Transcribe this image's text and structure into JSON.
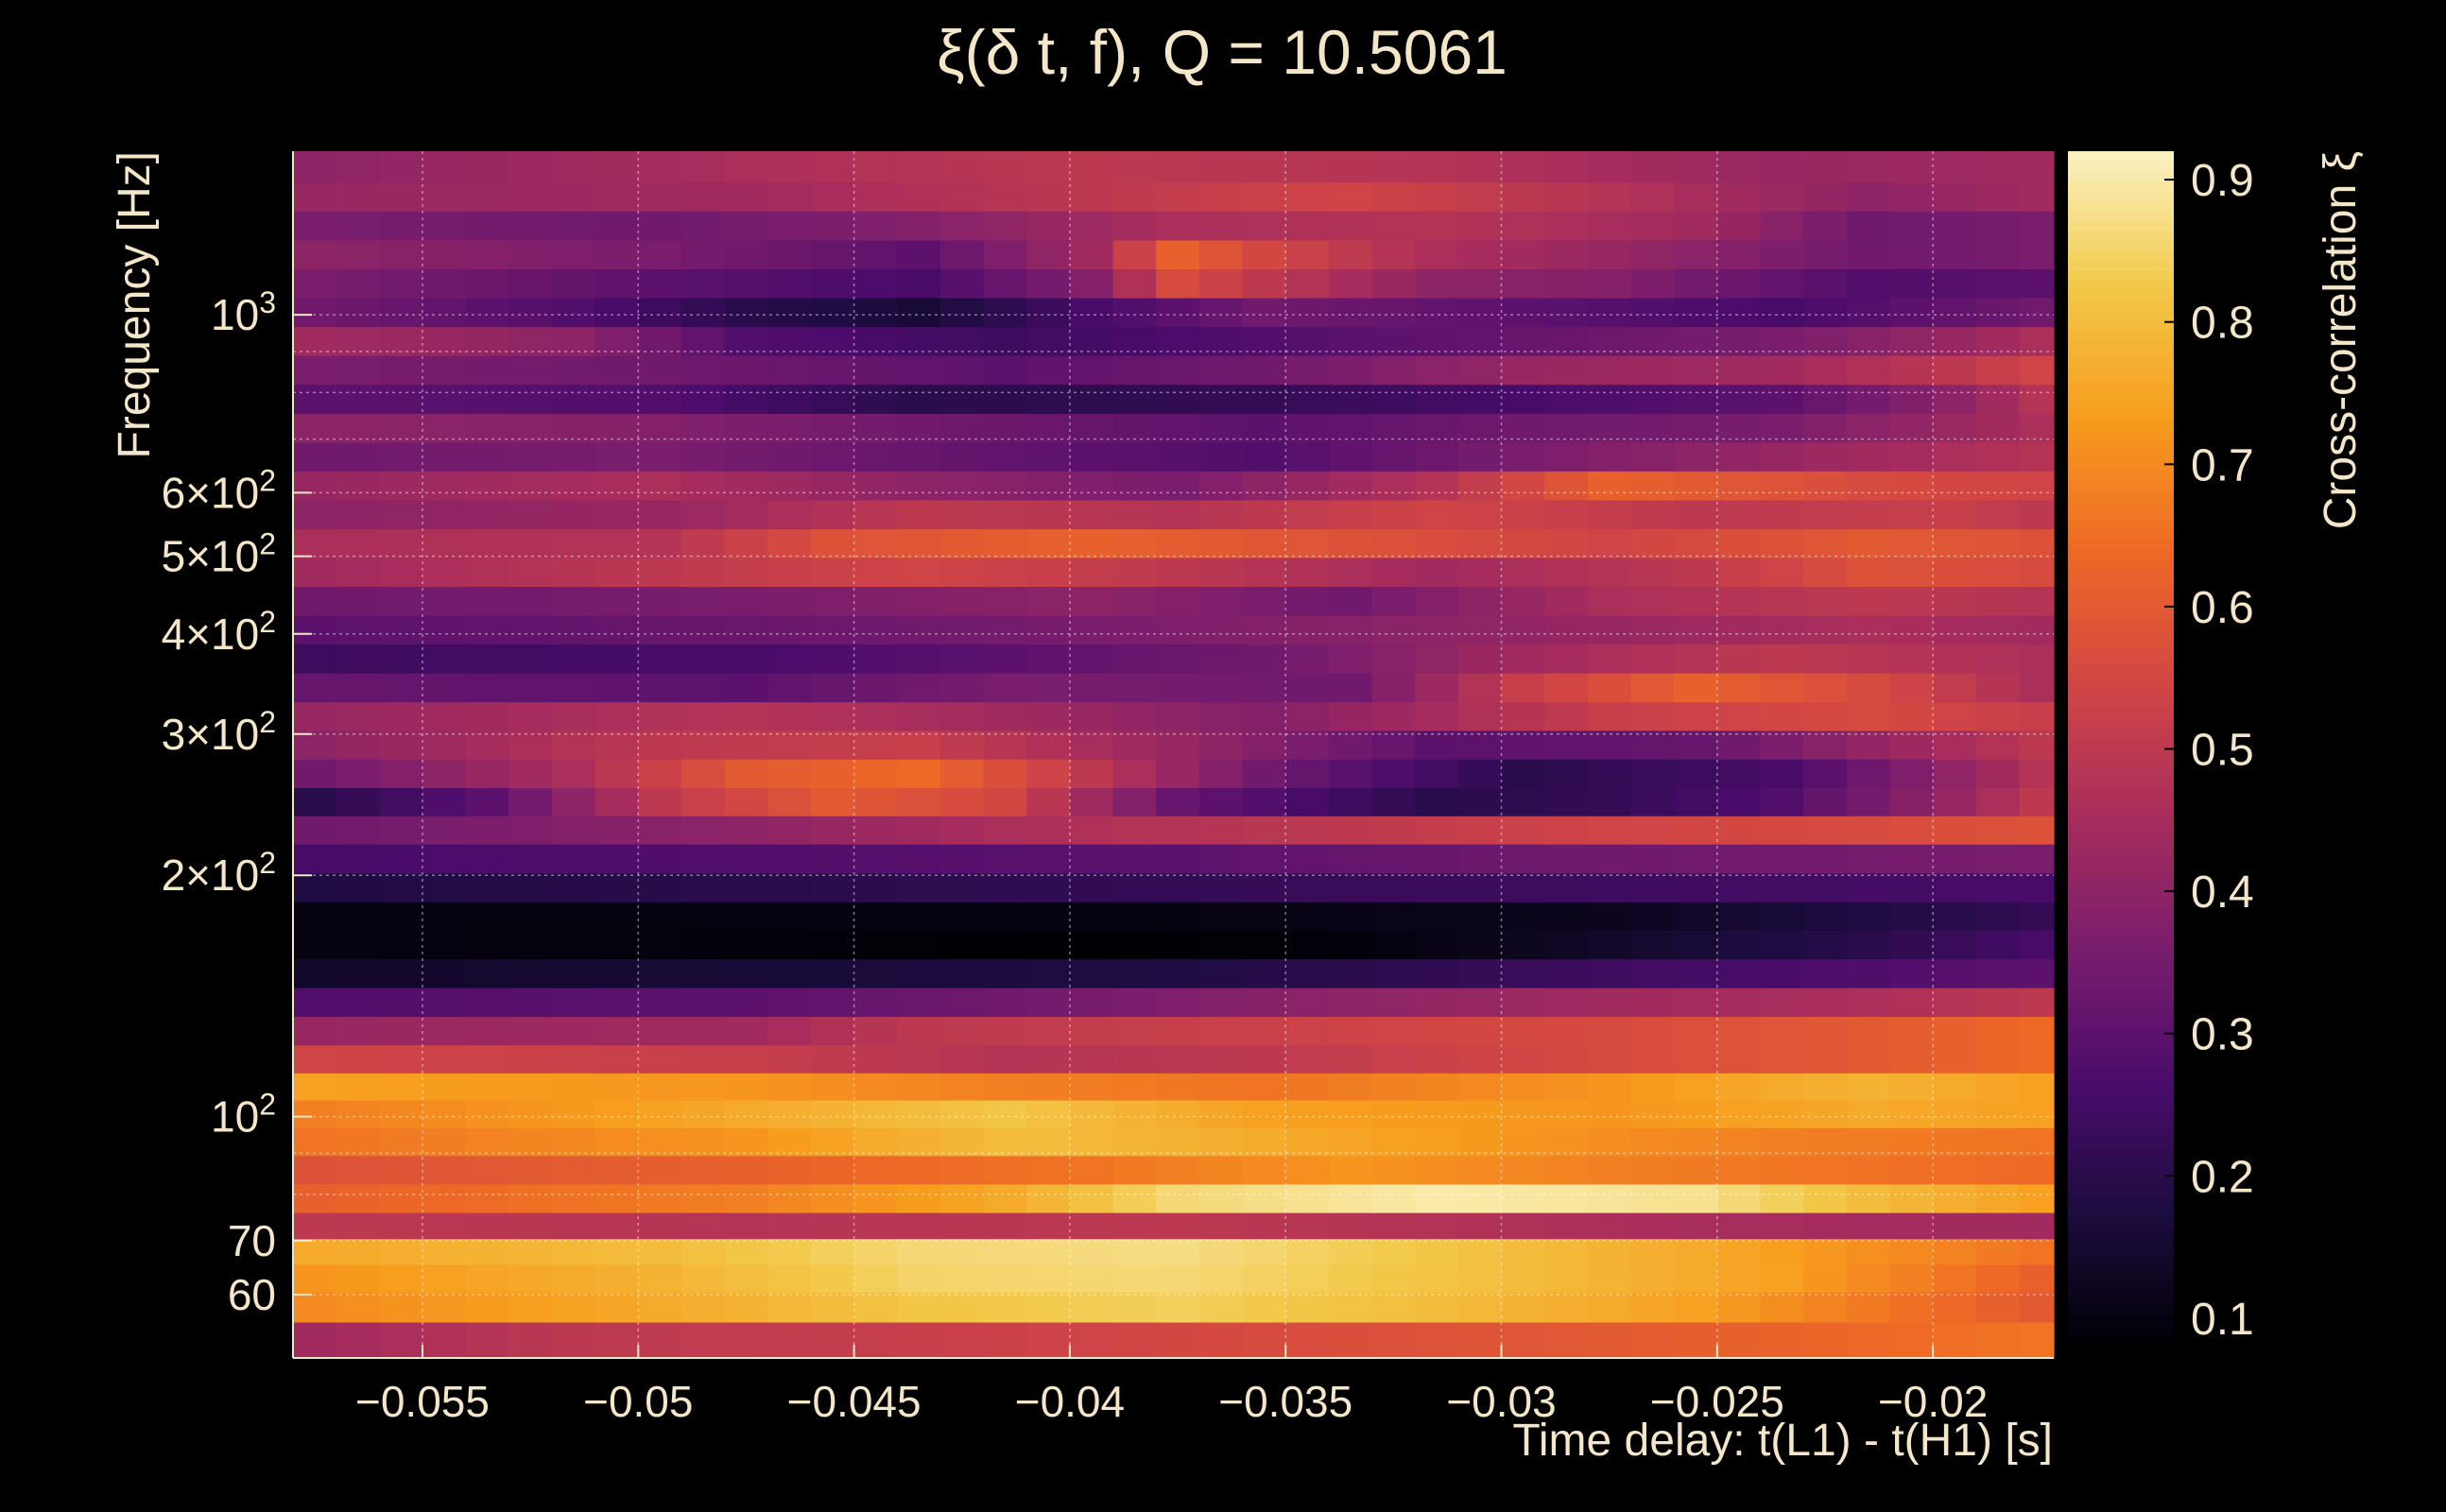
{
  "chart_data": {
    "type": "heatmap",
    "title": "ξ(δ t, f), Q = 10.5061",
    "xlabel": "Time delay: t(L1) - t(H1) [s]",
    "ylabel": "Frequency [Hz]",
    "colorbar_label": "Cross-correlation ξ",
    "xlim": [
      -0.058,
      -0.0172
    ],
    "ylim": [
      50,
      1600
    ],
    "yscale": "log",
    "grid": true,
    "colormap": [
      "#000004",
      "#1c0c3f",
      "#4b0c6b",
      "#7a1d6d",
      "#a72d5c",
      "#d24644",
      "#ee6925",
      "#f79d1e",
      "#f2c94a",
      "#fbf3c4"
    ],
    "clim": [
      0.08,
      0.92
    ],
    "x_ticks": [
      {
        "value": -0.055,
        "label": "−0.055"
      },
      {
        "value": -0.05,
        "label": "−0.05"
      },
      {
        "value": -0.045,
        "label": "−0.045"
      },
      {
        "value": -0.04,
        "label": "−0.04"
      },
      {
        "value": -0.035,
        "label": "−0.035"
      },
      {
        "value": -0.03,
        "label": "−0.03"
      },
      {
        "value": -0.025,
        "label": "−0.025"
      },
      {
        "value": -0.02,
        "label": "−0.02"
      }
    ],
    "y_ticks": [
      {
        "value": 60,
        "mant": "60",
        "exp": ""
      },
      {
        "value": 70,
        "mant": "70",
        "exp": ""
      },
      {
        "value": 100,
        "mant": "10",
        "exp": "2"
      },
      {
        "value": 200,
        "mant": "2×10",
        "exp": "2"
      },
      {
        "value": 300,
        "mant": "3×10",
        "exp": "2"
      },
      {
        "value": 400,
        "mant": "4×10",
        "exp": "2"
      },
      {
        "value": 500,
        "mant": "5×10",
        "exp": "2"
      },
      {
        "value": 600,
        "mant": "6×10",
        "exp": "2"
      },
      {
        "value": 1000,
        "mant": "10",
        "exp": "3"
      }
    ],
    "colorbar_ticks": [
      {
        "value": 0.1,
        "label": "0.1"
      },
      {
        "value": 0.2,
        "label": "0.2"
      },
      {
        "value": 0.3,
        "label": "0.3"
      },
      {
        "value": 0.4,
        "label": "0.4"
      },
      {
        "value": 0.5,
        "label": "0.5"
      },
      {
        "value": 0.6,
        "label": "0.6"
      },
      {
        "value": 0.7,
        "label": "0.7"
      },
      {
        "value": 0.8,
        "label": "0.8"
      },
      {
        "value": 0.9,
        "label": "0.9"
      }
    ],
    "grid_x_values": [
      -0.055,
      -0.05,
      -0.045,
      -0.04,
      -0.035,
      -0.03,
      -0.025,
      -0.02
    ],
    "grid_y_values": [
      60,
      70,
      80,
      90,
      100,
      200,
      300,
      400,
      500,
      600,
      700,
      800,
      900,
      1000
    ],
    "freq_bins": [
      53,
      58,
      63,
      68,
      73,
      79,
      86,
      93,
      101,
      109,
      118,
      128,
      139,
      151,
      164,
      178,
      193,
      210,
      228,
      247,
      268,
      291,
      316,
      343,
      373,
      405,
      440,
      478,
      519,
      564,
      613,
      666,
      723,
      786,
      854,
      928,
      1008,
      1095,
      1190,
      1293,
      1405,
      1527
    ],
    "time_bins": [
      -0.0575,
      -0.0565,
      -0.0555,
      -0.0545,
      -0.0535,
      -0.0525,
      -0.0515,
      -0.0505,
      -0.0495,
      -0.0485,
      -0.0475,
      -0.0465,
      -0.0455,
      -0.0445,
      -0.0435,
      -0.0425,
      -0.0415,
      -0.0405,
      -0.0395,
      -0.0385,
      -0.0375,
      -0.0365,
      -0.0355,
      -0.0345,
      -0.0335,
      -0.0325,
      -0.0315,
      -0.0305,
      -0.0295,
      -0.0285,
      -0.0275,
      -0.0265,
      -0.0255,
      -0.0245,
      -0.0235,
      -0.0225,
      -0.0215,
      -0.0205,
      -0.0195,
      -0.0185,
      -0.0175
    ],
    "row_keyframes": [
      [
        [
          0,
          0.44
        ],
        [
          6,
          0.5
        ],
        [
          14,
          0.52
        ],
        [
          22,
          0.56
        ],
        [
          30,
          0.6
        ],
        [
          40,
          0.66
        ]
      ],
      [
        [
          0,
          0.7
        ],
        [
          8,
          0.76
        ],
        [
          14,
          0.82
        ],
        [
          20,
          0.84
        ],
        [
          26,
          0.8
        ],
        [
          32,
          0.74
        ],
        [
          40,
          0.6
        ]
      ],
      [
        [
          0,
          0.72
        ],
        [
          8,
          0.78
        ],
        [
          14,
          0.85
        ],
        [
          20,
          0.86
        ],
        [
          28,
          0.8
        ],
        [
          34,
          0.74
        ],
        [
          40,
          0.62
        ]
      ],
      [
        [
          0,
          0.76
        ],
        [
          8,
          0.8
        ],
        [
          14,
          0.86
        ],
        [
          20,
          0.87
        ],
        [
          26,
          0.82
        ],
        [
          32,
          0.76
        ],
        [
          40,
          0.66
        ]
      ],
      [
        [
          0,
          0.5
        ],
        [
          10,
          0.48
        ],
        [
          20,
          0.5
        ],
        [
          30,
          0.46
        ],
        [
          40,
          0.44
        ]
      ],
      [
        [
          0,
          0.62
        ],
        [
          10,
          0.68
        ],
        [
          16,
          0.76
        ],
        [
          20,
          0.86
        ],
        [
          26,
          0.9
        ],
        [
          32,
          0.88
        ],
        [
          36,
          0.8
        ],
        [
          40,
          0.74
        ]
      ],
      [
        [
          0,
          0.58
        ],
        [
          10,
          0.62
        ],
        [
          18,
          0.66
        ],
        [
          24,
          0.72
        ],
        [
          30,
          0.68
        ],
        [
          40,
          0.64
        ]
      ],
      [
        [
          0,
          0.66
        ],
        [
          10,
          0.72
        ],
        [
          16,
          0.8
        ],
        [
          20,
          0.78
        ],
        [
          28,
          0.72
        ],
        [
          34,
          0.68
        ],
        [
          40,
          0.66
        ]
      ],
      [
        [
          0,
          0.68
        ],
        [
          10,
          0.76
        ],
        [
          16,
          0.82
        ],
        [
          22,
          0.74
        ],
        [
          30,
          0.72
        ],
        [
          36,
          0.76
        ],
        [
          40,
          0.74
        ]
      ],
      [
        [
          0,
          0.74
        ],
        [
          10,
          0.72
        ],
        [
          16,
          0.68
        ],
        [
          22,
          0.66
        ],
        [
          30,
          0.72
        ],
        [
          36,
          0.78
        ],
        [
          40,
          0.74
        ]
      ],
      [
        [
          0,
          0.54
        ],
        [
          10,
          0.52
        ],
        [
          16,
          0.48
        ],
        [
          22,
          0.5
        ],
        [
          30,
          0.56
        ],
        [
          36,
          0.6
        ],
        [
          40,
          0.64
        ]
      ],
      [
        [
          0,
          0.42
        ],
        [
          10,
          0.44
        ],
        [
          14,
          0.5
        ],
        [
          20,
          0.52
        ],
        [
          30,
          0.56
        ],
        [
          36,
          0.6
        ],
        [
          40,
          0.64
        ]
      ],
      [
        [
          0,
          0.28
        ],
        [
          10,
          0.3
        ],
        [
          16,
          0.34
        ],
        [
          24,
          0.4
        ],
        [
          30,
          0.44
        ],
        [
          36,
          0.46
        ],
        [
          40,
          0.5
        ]
      ],
      [
        [
          0,
          0.14
        ],
        [
          10,
          0.16
        ],
        [
          20,
          0.18
        ],
        [
          30,
          0.24
        ],
        [
          40,
          0.3
        ]
      ],
      [
        [
          0,
          0.1
        ],
        [
          10,
          0.09
        ],
        [
          18,
          0.08
        ],
        [
          24,
          0.09
        ],
        [
          30,
          0.14
        ],
        [
          36,
          0.2
        ],
        [
          40,
          0.26
        ]
      ],
      [
        [
          0,
          0.1
        ],
        [
          10,
          0.1
        ],
        [
          20,
          0.1
        ],
        [
          30,
          0.12
        ],
        [
          36,
          0.18
        ],
        [
          40,
          0.22
        ]
      ],
      [
        [
          0,
          0.18
        ],
        [
          10,
          0.2
        ],
        [
          20,
          0.22
        ],
        [
          30,
          0.24
        ],
        [
          40,
          0.26
        ]
      ],
      [
        [
          0,
          0.26
        ],
        [
          10,
          0.28
        ],
        [
          20,
          0.3
        ],
        [
          30,
          0.34
        ],
        [
          40,
          0.36
        ]
      ],
      [
        [
          0,
          0.34
        ],
        [
          10,
          0.4
        ],
        [
          16,
          0.46
        ],
        [
          24,
          0.5
        ],
        [
          30,
          0.54
        ],
        [
          36,
          0.56
        ],
        [
          40,
          0.58
        ]
      ],
      [
        [
          0,
          0.2
        ],
        [
          4,
          0.3
        ],
        [
          8,
          0.5
        ],
        [
          12,
          0.6
        ],
        [
          16,
          0.55
        ],
        [
          20,
          0.32
        ],
        [
          26,
          0.2
        ],
        [
          30,
          0.22
        ],
        [
          34,
          0.28
        ],
        [
          38,
          0.42
        ],
        [
          40,
          0.5
        ]
      ],
      [
        [
          0,
          0.34
        ],
        [
          6,
          0.46
        ],
        [
          10,
          0.6
        ],
        [
          14,
          0.64
        ],
        [
          18,
          0.5
        ],
        [
          22,
          0.34
        ],
        [
          28,
          0.2
        ],
        [
          34,
          0.26
        ],
        [
          40,
          0.48
        ]
      ],
      [
        [
          0,
          0.4
        ],
        [
          8,
          0.5
        ],
        [
          14,
          0.52
        ],
        [
          20,
          0.42
        ],
        [
          26,
          0.3
        ],
        [
          32,
          0.32
        ],
        [
          40,
          0.5
        ]
      ],
      [
        [
          0,
          0.42
        ],
        [
          10,
          0.48
        ],
        [
          16,
          0.44
        ],
        [
          22,
          0.38
        ],
        [
          30,
          0.52
        ],
        [
          36,
          0.56
        ],
        [
          40,
          0.52
        ]
      ],
      [
        [
          0,
          0.32
        ],
        [
          10,
          0.3
        ],
        [
          16,
          0.36
        ],
        [
          24,
          0.34
        ],
        [
          28,
          0.52
        ],
        [
          32,
          0.62
        ],
        [
          36,
          0.56
        ],
        [
          40,
          0.46
        ]
      ],
      [
        [
          0,
          0.24
        ],
        [
          10,
          0.26
        ],
        [
          16,
          0.3
        ],
        [
          22,
          0.34
        ],
        [
          28,
          0.44
        ],
        [
          34,
          0.5
        ],
        [
          40,
          0.46
        ]
      ],
      [
        [
          0,
          0.3
        ],
        [
          8,
          0.32
        ],
        [
          14,
          0.34
        ],
        [
          22,
          0.38
        ],
        [
          30,
          0.42
        ],
        [
          36,
          0.46
        ],
        [
          40,
          0.44
        ]
      ],
      [
        [
          0,
          0.34
        ],
        [
          10,
          0.36
        ],
        [
          18,
          0.4
        ],
        [
          24,
          0.34
        ],
        [
          30,
          0.46
        ],
        [
          36,
          0.5
        ],
        [
          40,
          0.48
        ]
      ],
      [
        [
          0,
          0.44
        ],
        [
          8,
          0.5
        ],
        [
          14,
          0.54
        ],
        [
          20,
          0.5
        ],
        [
          26,
          0.44
        ],
        [
          32,
          0.5
        ],
        [
          36,
          0.58
        ],
        [
          40,
          0.56
        ]
      ],
      [
        [
          0,
          0.46
        ],
        [
          8,
          0.48
        ],
        [
          12,
          0.58
        ],
        [
          18,
          0.62
        ],
        [
          24,
          0.58
        ],
        [
          30,
          0.54
        ],
        [
          36,
          0.6
        ],
        [
          40,
          0.58
        ]
      ],
      [
        [
          0,
          0.4
        ],
        [
          8,
          0.42
        ],
        [
          14,
          0.5
        ],
        [
          20,
          0.48
        ],
        [
          26,
          0.54
        ],
        [
          32,
          0.5
        ],
        [
          38,
          0.52
        ],
        [
          40,
          0.5
        ]
      ],
      [
        [
          0,
          0.42
        ],
        [
          8,
          0.46
        ],
        [
          14,
          0.4
        ],
        [
          20,
          0.36
        ],
        [
          26,
          0.48
        ],
        [
          30,
          0.62
        ],
        [
          36,
          0.56
        ],
        [
          40,
          0.54
        ]
      ],
      [
        [
          0,
          0.34
        ],
        [
          8,
          0.36
        ],
        [
          14,
          0.32
        ],
        [
          22,
          0.28
        ],
        [
          28,
          0.36
        ],
        [
          34,
          0.42
        ],
        [
          40,
          0.48
        ]
      ],
      [
        [
          0,
          0.4
        ],
        [
          8,
          0.38
        ],
        [
          14,
          0.34
        ],
        [
          22,
          0.3
        ],
        [
          28,
          0.34
        ],
        [
          34,
          0.36
        ],
        [
          40,
          0.46
        ]
      ],
      [
        [
          0,
          0.3
        ],
        [
          8,
          0.28
        ],
        [
          14,
          0.2
        ],
        [
          22,
          0.22
        ],
        [
          28,
          0.26
        ],
        [
          34,
          0.3
        ],
        [
          38,
          0.4
        ],
        [
          40,
          0.48
        ]
      ],
      [
        [
          0,
          0.36
        ],
        [
          8,
          0.34
        ],
        [
          16,
          0.3
        ],
        [
          22,
          0.34
        ],
        [
          28,
          0.42
        ],
        [
          34,
          0.44
        ],
        [
          38,
          0.5
        ],
        [
          40,
          0.54
        ]
      ],
      [
        [
          0,
          0.44
        ],
        [
          6,
          0.4
        ],
        [
          10,
          0.28
        ],
        [
          16,
          0.24
        ],
        [
          22,
          0.28
        ],
        [
          28,
          0.32
        ],
        [
          34,
          0.36
        ],
        [
          38,
          0.42
        ],
        [
          40,
          0.46
        ]
      ],
      [
        [
          0,
          0.34
        ],
        [
          6,
          0.28
        ],
        [
          10,
          0.2
        ],
        [
          14,
          0.16
        ],
        [
          18,
          0.26
        ],
        [
          22,
          0.34
        ],
        [
          28,
          0.3
        ],
        [
          34,
          0.26
        ],
        [
          40,
          0.34
        ]
      ],
      [
        [
          0,
          0.36
        ],
        [
          8,
          0.3
        ],
        [
          14,
          0.26
        ],
        [
          18,
          0.38
        ],
        [
          20,
          0.56
        ],
        [
          22,
          0.5
        ],
        [
          26,
          0.4
        ],
        [
          30,
          0.38
        ],
        [
          36,
          0.28
        ],
        [
          40,
          0.3
        ]
      ],
      [
        [
          0,
          0.4
        ],
        [
          8,
          0.36
        ],
        [
          14,
          0.3
        ],
        [
          18,
          0.44
        ],
        [
          20,
          0.62
        ],
        [
          22,
          0.55
        ],
        [
          26,
          0.46
        ],
        [
          30,
          0.42
        ],
        [
          36,
          0.34
        ],
        [
          40,
          0.36
        ]
      ],
      [
        [
          0,
          0.36
        ],
        [
          8,
          0.34
        ],
        [
          14,
          0.38
        ],
        [
          20,
          0.46
        ],
        [
          26,
          0.48
        ],
        [
          32,
          0.44
        ],
        [
          36,
          0.34
        ],
        [
          40,
          0.36
        ]
      ],
      [
        [
          0,
          0.42
        ],
        [
          10,
          0.44
        ],
        [
          18,
          0.5
        ],
        [
          24,
          0.54
        ],
        [
          30,
          0.48
        ],
        [
          36,
          0.4
        ],
        [
          40,
          0.44
        ]
      ],
      [
        [
          0,
          0.4
        ],
        [
          10,
          0.46
        ],
        [
          18,
          0.5
        ],
        [
          26,
          0.48
        ],
        [
          34,
          0.42
        ],
        [
          40,
          0.44
        ]
      ]
    ]
  }
}
